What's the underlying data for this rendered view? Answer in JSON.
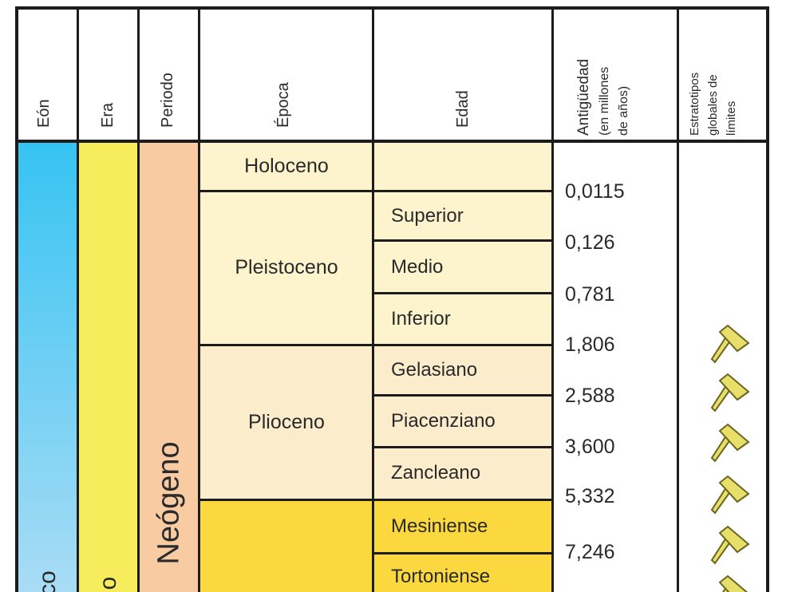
{
  "columns": {
    "eon": "Eón",
    "era": "Era",
    "period": "Periodo",
    "epoch": "Época",
    "age": "Edad",
    "antiquity": [
      "Antigüedad",
      "(en millones",
      "de años)"
    ],
    "stratotypes": [
      "Estratotipos",
      "globales de",
      "límites"
    ]
  },
  "eon_label": "co",
  "era_label": "o",
  "period_label": "Neógeno",
  "epochs": [
    {
      "name": "Holoceno",
      "color": "#fdf3cc"
    },
    {
      "name": "Pleistoceno",
      "color": "#fdf3cc"
    },
    {
      "name": "Plioceno",
      "color": "#fbeccb"
    },
    {
      "name": "",
      "color": "#fbd93e"
    }
  ],
  "ages": [
    {
      "name": "",
      "color": "#fdf3cc"
    },
    {
      "name": "Superior",
      "color": "#fdf3cc"
    },
    {
      "name": "Medio",
      "color": "#fdf3cc"
    },
    {
      "name": "Inferior",
      "color": "#fdf3cc"
    },
    {
      "name": "Gelasiano",
      "color": "#fbeccb"
    },
    {
      "name": "Piacenziano",
      "color": "#fbeccb"
    },
    {
      "name": "Zancleano",
      "color": "#fbeccb"
    },
    {
      "name": "Mesiniense",
      "color": "#fbd93e"
    },
    {
      "name": "Tortoniense",
      "color": "#fbd93e"
    }
  ],
  "boundary_values": [
    "0,0115",
    "0,126",
    "0,781",
    "1,806",
    "2,588",
    "3,600",
    "5,332",
    "7,246"
  ],
  "boundary_stratotype_markers": [
    false,
    false,
    false,
    true,
    true,
    true,
    true,
    true
  ],
  "colors": {
    "eon": "#36c3f2",
    "era": "#f6ec5c",
    "period": "#f8cba3",
    "pin_fill": "#e8de6a",
    "pin_stroke": "#6b6520"
  }
}
